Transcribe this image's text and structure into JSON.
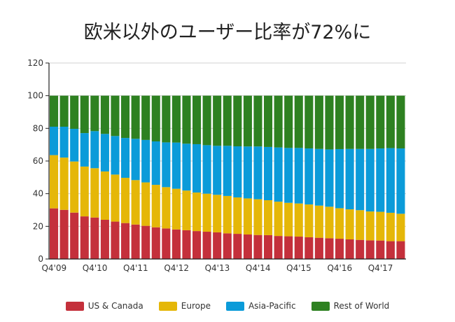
{
  "chart_data": {
    "type": "bar",
    "stacked": true,
    "title": "欧米以外のユーザー比率が72%に",
    "xlabel": "",
    "ylabel": "",
    "ylim": [
      0,
      120
    ],
    "y_ticks": [
      "0",
      "20",
      "40",
      "60",
      "80",
      "100",
      "120"
    ],
    "tick_labels": [
      "Q4'09",
      "Q4'10",
      "Q4'11",
      "Q4'12",
      "Q4'13",
      "Q4'14",
      "Q4'15",
      "Q4'16",
      "Q4'17"
    ],
    "tick_every": 4,
    "bar_count": 35,
    "grid": true,
    "legend_position": "bottom",
    "series": [
      {
        "name": "US & Canada",
        "color": "#c4303b",
        "values": [
          31.0,
          30.1,
          28.4,
          26.1,
          25.4,
          24.0,
          22.9,
          22.0,
          21.1,
          20.3,
          19.4,
          18.7,
          18.1,
          17.6,
          17.1,
          16.7,
          16.3,
          15.7,
          15.4,
          15.0,
          14.7,
          14.6,
          14.1,
          13.9,
          13.7,
          13.3,
          13.0,
          12.7,
          12.4,
          12.0,
          11.7,
          11.4,
          11.3,
          10.9,
          10.9
        ]
      },
      {
        "name": "Europe",
        "color": "#e5b708",
        "values": [
          32.6,
          32.0,
          31.3,
          30.5,
          30.2,
          29.6,
          28.8,
          27.7,
          27.2,
          26.6,
          26.0,
          25.3,
          24.9,
          24.3,
          23.6,
          23.3,
          23.0,
          22.9,
          22.3,
          22.1,
          21.9,
          21.4,
          21.0,
          20.5,
          20.3,
          20.1,
          19.7,
          19.3,
          18.7,
          18.4,
          18.2,
          17.7,
          17.6,
          17.4,
          16.8
        ]
      },
      {
        "name": "Asia-Pacific",
        "color": "#0b9bd9",
        "values": [
          17.4,
          18.9,
          20.0,
          20.5,
          22.7,
          23.0,
          23.6,
          24.4,
          25.3,
          26.0,
          26.6,
          27.4,
          28.3,
          28.7,
          29.6,
          29.7,
          30.0,
          30.7,
          31.3,
          31.8,
          32.3,
          32.6,
          33.2,
          33.6,
          34.0,
          34.3,
          34.7,
          35.1,
          36.2,
          37.0,
          37.5,
          38.3,
          38.8,
          39.6,
          40.0
        ]
      },
      {
        "name": "Rest of World",
        "color": "#2e8121",
        "values": [
          19.0,
          19.0,
          20.3,
          22.9,
          21.7,
          23.4,
          24.7,
          25.9,
          26.4,
          27.1,
          28.0,
          28.6,
          28.7,
          29.4,
          29.7,
          30.3,
          30.7,
          30.7,
          31.0,
          31.1,
          31.1,
          31.4,
          31.7,
          32.0,
          32.0,
          32.3,
          32.6,
          32.9,
          32.7,
          32.6,
          32.6,
          32.6,
          32.3,
          32.1,
          32.3
        ]
      }
    ]
  }
}
